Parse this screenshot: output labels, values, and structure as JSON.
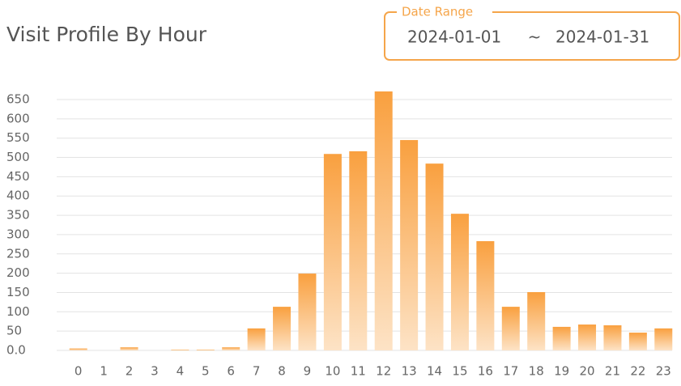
{
  "chart_data": {
    "type": "bar",
    "title": "Visit Profile By Hour",
    "date_range": {
      "legend": "Date Range",
      "start": "2024-01-01",
      "separator": "~",
      "end": "2024-01-31"
    },
    "categories": [
      "0",
      "1",
      "2",
      "3",
      "4",
      "5",
      "6",
      "7",
      "8",
      "9",
      "10",
      "11",
      "12",
      "13",
      "14",
      "15",
      "16",
      "17",
      "18",
      "19",
      "20",
      "21",
      "22",
      "23"
    ],
    "values": [
      5,
      0,
      8,
      0,
      2,
      2,
      8,
      57,
      113,
      199,
      509,
      516,
      671,
      545,
      484,
      354,
      283,
      113,
      151,
      61,
      67,
      65,
      46,
      57
    ],
    "color": "#f9a03f",
    "ylim": [
      0,
      680
    ],
    "yticks": [
      {
        "value": 0,
        "label": "0.0"
      },
      50,
      100,
      150,
      200,
      250,
      300,
      350,
      400,
      450,
      500,
      550,
      600,
      650
    ],
    "grid": true
  }
}
